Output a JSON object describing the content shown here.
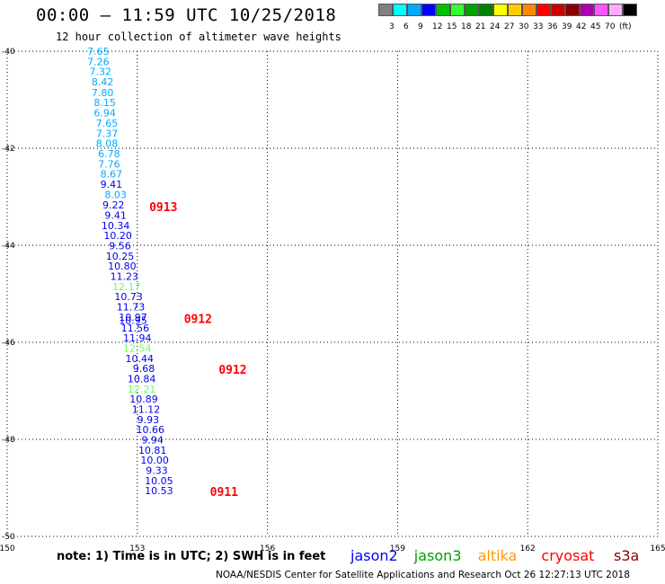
{
  "header": {
    "title": "00:00 – 11:59 UTC 10/25/2018",
    "subtitle": "12 hour collection of altimeter wave heights"
  },
  "colorbar": {
    "colors": [
      "#808080",
      "#00ffff",
      "#00aaff",
      "#0000ff",
      "#00c000",
      "#33ff33",
      "#00a000",
      "#008000",
      "#ffff00",
      "#ffcc00",
      "#ff8800",
      "#ff0000",
      "#cc0000",
      "#880000",
      "#aa00aa",
      "#ff55ff",
      "#ffaaff",
      "#000000"
    ],
    "labels": [
      "3",
      "6",
      "9",
      "12",
      "15",
      "18",
      "21",
      "24",
      "27",
      "30",
      "33",
      "36",
      "39",
      "42",
      "45",
      "70",
      "(ft)"
    ]
  },
  "chart_data": {
    "type": "scatter",
    "xlim": [
      150,
      165
    ],
    "ylim": [
      -50,
      -40
    ],
    "x_ticks": [
      "150",
      "153",
      "156",
      "159",
      "162",
      "165"
    ],
    "y_ticks": [
      "-40",
      "-42",
      "-44",
      "-46",
      "-48",
      "-50"
    ],
    "grid": true,
    "color_scale": [
      {
        "max": 9,
        "color": "#00aaff"
      },
      {
        "max": 12,
        "color": "#0000ee"
      },
      {
        "max": 15,
        "color": "#66ff66"
      }
    ],
    "points": [
      {
        "lon": 152.1,
        "lat": -40.0,
        "v": "7.65"
      },
      {
        "lon": 152.1,
        "lat": -40.21,
        "v": "7.26"
      },
      {
        "lon": 152.15,
        "lat": -40.42,
        "v": "7.32"
      },
      {
        "lon": 152.2,
        "lat": -40.63,
        "v": "8.42"
      },
      {
        "lon": 152.2,
        "lat": -40.85,
        "v": "7.80"
      },
      {
        "lon": 152.25,
        "lat": -41.06,
        "v": "8.15"
      },
      {
        "lon": 152.25,
        "lat": -41.27,
        "v": "6.94"
      },
      {
        "lon": 152.3,
        "lat": -41.48,
        "v": "7.65"
      },
      {
        "lon": 152.3,
        "lat": -41.69,
        "v": "7.37"
      },
      {
        "lon": 152.3,
        "lat": -41.9,
        "v": "8.08"
      },
      {
        "lon": 152.35,
        "lat": -42.11,
        "v": "6.78"
      },
      {
        "lon": 152.35,
        "lat": -42.32,
        "v": "7.76"
      },
      {
        "lon": 152.4,
        "lat": -42.53,
        "v": "8.67"
      },
      {
        "lon": 152.4,
        "lat": -42.74,
        "v": "9.41"
      },
      {
        "lon": 152.5,
        "lat": -42.95,
        "v": "8.03"
      },
      {
        "lon": 152.45,
        "lat": -43.17,
        "v": "9.22"
      },
      {
        "lon": 152.5,
        "lat": -43.38,
        "v": "9.41"
      },
      {
        "lon": 152.5,
        "lat": -43.59,
        "v": "10.34"
      },
      {
        "lon": 152.55,
        "lat": -43.8,
        "v": "10.20"
      },
      {
        "lon": 152.6,
        "lat": -44.01,
        "v": "9.56"
      },
      {
        "lon": 152.6,
        "lat": -44.22,
        "v": "10.25"
      },
      {
        "lon": 152.65,
        "lat": -44.43,
        "v": "10.80"
      },
      {
        "lon": 152.7,
        "lat": -44.64,
        "v": "11.23"
      },
      {
        "lon": 152.75,
        "lat": -44.85,
        "v": "12.17"
      },
      {
        "lon": 152.8,
        "lat": -45.06,
        "v": "10.73"
      },
      {
        "lon": 152.85,
        "lat": -45.27,
        "v": "11.73"
      },
      {
        "lon": 152.9,
        "lat": -45.48,
        "v": "10.97"
      },
      {
        "lon": 152.9,
        "lat": -45.55,
        "v": "10.95"
      },
      {
        "lon": 152.95,
        "lat": -45.7,
        "v": "11.56"
      },
      {
        "lon": 153.0,
        "lat": -45.91,
        "v": "11.94"
      },
      {
        "lon": 153.0,
        "lat": -46.12,
        "v": "12.54"
      },
      {
        "lon": 153.05,
        "lat": -46.33,
        "v": "10.44"
      },
      {
        "lon": 153.15,
        "lat": -46.54,
        "v": "9.68"
      },
      {
        "lon": 153.1,
        "lat": -46.75,
        "v": "10.84"
      },
      {
        "lon": 153.1,
        "lat": -46.96,
        "v": "12.21"
      },
      {
        "lon": 153.15,
        "lat": -47.17,
        "v": "10.89"
      },
      {
        "lon": 153.2,
        "lat": -47.38,
        "v": "11.12"
      },
      {
        "lon": 153.25,
        "lat": -47.59,
        "v": "9.93"
      },
      {
        "lon": 153.3,
        "lat": -47.8,
        "v": "10.66"
      },
      {
        "lon": 153.35,
        "lat": -48.01,
        "v": "9.94"
      },
      {
        "lon": 153.35,
        "lat": -48.22,
        "v": "10.81"
      },
      {
        "lon": 153.4,
        "lat": -48.43,
        "v": "10.00"
      },
      {
        "lon": 153.45,
        "lat": -48.64,
        "v": "9.33"
      },
      {
        "lon": 153.5,
        "lat": -48.85,
        "v": "10.05"
      },
      {
        "lon": 153.5,
        "lat": -49.06,
        "v": "10.53"
      }
    ],
    "annotations": [
      {
        "lon": 153.6,
        "lat": -43.2,
        "text": "0913"
      },
      {
        "lon": 154.4,
        "lat": -45.51,
        "text": "0912"
      },
      {
        "lon": 155.2,
        "lat": -46.56,
        "text": "0912"
      },
      {
        "lon": 155.0,
        "lat": -49.07,
        "text": "0911"
      }
    ],
    "annotation_color": "#ff0000"
  },
  "footer": {
    "note": "note: 1) Time is in UTC; 2) SWH is in feet",
    "credit": "NOAA/NESDIS Center for Satellite Applications and Research    Oct 26 12:27:13 UTC 2018",
    "legend": [
      {
        "name": "jason2",
        "color": "#0000ff"
      },
      {
        "name": "jason3",
        "color": "#00a000"
      },
      {
        "name": "altika",
        "color": "#ff9900"
      },
      {
        "name": "cryosat",
        "color": "#ff0000"
      },
      {
        "name": "s3a",
        "color": "#880000"
      }
    ]
  }
}
